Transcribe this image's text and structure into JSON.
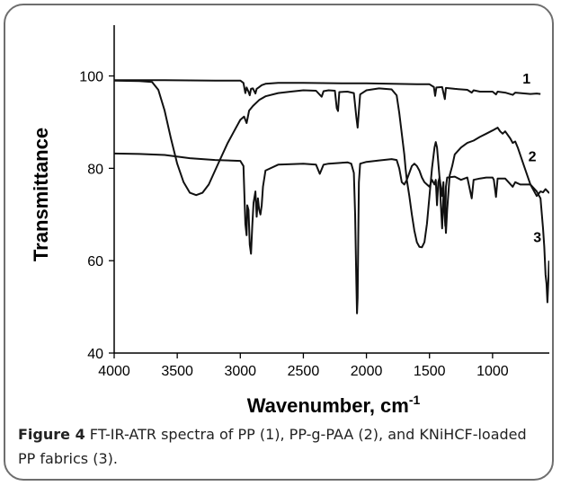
{
  "chart_data": {
    "type": "line",
    "xlabel": "Wavenumber, cm",
    "xlabel_sup": "-1",
    "ylabel": "Transmittance",
    "xlim": [
      4000,
      550
    ],
    "ylim": [
      40,
      111
    ],
    "x_ticks": [
      4000,
      3500,
      3000,
      2500,
      2000,
      1500,
      1000
    ],
    "y_ticks": [
      40,
      60,
      80,
      100
    ],
    "grid": false,
    "series": [
      {
        "name": "1",
        "label_at": [
          730,
          98.4
        ],
        "points": [
          [
            4000,
            99.1
          ],
          [
            3600,
            99.1
          ],
          [
            3200,
            99.0
          ],
          [
            3000,
            99.0
          ],
          [
            2975,
            98.5
          ],
          [
            2960,
            96.3
          ],
          [
            2950,
            97.5
          ],
          [
            2935,
            96.6
          ],
          [
            2925,
            95.8
          ],
          [
            2915,
            97.2
          ],
          [
            2900,
            97.3
          ],
          [
            2880,
            96.2
          ],
          [
            2870,
            97.2
          ],
          [
            2850,
            97.6
          ],
          [
            2830,
            98.0
          ],
          [
            2800,
            98.3
          ],
          [
            2700,
            98.5
          ],
          [
            2500,
            98.5
          ],
          [
            2200,
            98.4
          ],
          [
            2000,
            98.4
          ],
          [
            1800,
            98.3
          ],
          [
            1600,
            98.2
          ],
          [
            1500,
            98.2
          ],
          [
            1465,
            97.6
          ],
          [
            1455,
            95.7
          ],
          [
            1445,
            97.5
          ],
          [
            1400,
            97.6
          ],
          [
            1378,
            95.0
          ],
          [
            1370,
            97.4
          ],
          [
            1300,
            97.2
          ],
          [
            1200,
            97.0
          ],
          [
            1165,
            96.4
          ],
          [
            1150,
            96.9
          ],
          [
            1100,
            96.6
          ],
          [
            1000,
            96.6
          ],
          [
            973,
            96.0
          ],
          [
            960,
            96.6
          ],
          [
            900,
            96.4
          ],
          [
            840,
            95.9
          ],
          [
            820,
            96.4
          ],
          [
            700,
            96.1
          ],
          [
            650,
            96.2
          ],
          [
            620,
            96.1
          ]
        ]
      },
      {
        "name": "2",
        "label_at": [
          685,
          81.5
        ],
        "points": [
          [
            4000,
            99.0
          ],
          [
            3800,
            98.9
          ],
          [
            3700,
            98.7
          ],
          [
            3650,
            97.0
          ],
          [
            3600,
            92.5
          ],
          [
            3550,
            86.5
          ],
          [
            3500,
            81.0
          ],
          [
            3450,
            77.0
          ],
          [
            3400,
            74.7
          ],
          [
            3350,
            74.2
          ],
          [
            3300,
            74.7
          ],
          [
            3250,
            76.5
          ],
          [
            3200,
            79.5
          ],
          [
            3150,
            82.5
          ],
          [
            3100,
            85.5
          ],
          [
            3050,
            88.0
          ],
          [
            3000,
            90.5
          ],
          [
            2970,
            91.2
          ],
          [
            2950,
            89.8
          ],
          [
            2930,
            92.5
          ],
          [
            2900,
            93.5
          ],
          [
            2850,
            94.8
          ],
          [
            2800,
            95.6
          ],
          [
            2700,
            96.3
          ],
          [
            2600,
            96.6
          ],
          [
            2500,
            96.9
          ],
          [
            2400,
            96.8
          ],
          [
            2355,
            95.5
          ],
          [
            2340,
            96.7
          ],
          [
            2300,
            96.9
          ],
          [
            2250,
            96.8
          ],
          [
            2235,
            93.0
          ],
          [
            2225,
            92.4
          ],
          [
            2215,
            96.5
          ],
          [
            2150,
            96.6
          ],
          [
            2100,
            96.3
          ],
          [
            2080,
            91.0
          ],
          [
            2070,
            88.8
          ],
          [
            2060,
            92.5
          ],
          [
            2050,
            96.0
          ],
          [
            2000,
            96.9
          ],
          [
            1900,
            97.3
          ],
          [
            1800,
            97.1
          ],
          [
            1760,
            95.8
          ],
          [
            1740,
            92.0
          ],
          [
            1720,
            87.5
          ],
          [
            1700,
            83.0
          ],
          [
            1690,
            80.0
          ],
          [
            1680,
            77.5
          ],
          [
            1660,
            74.0
          ],
          [
            1640,
            70.0
          ],
          [
            1620,
            66.5
          ],
          [
            1600,
            64.0
          ],
          [
            1580,
            63.0
          ],
          [
            1560,
            62.9
          ],
          [
            1540,
            64.0
          ],
          [
            1520,
            68.0
          ],
          [
            1500,
            74.0
          ],
          [
            1480,
            80.0
          ],
          [
            1460,
            84.5
          ],
          [
            1450,
            85.7
          ],
          [
            1440,
            84.5
          ],
          [
            1420,
            78.0
          ],
          [
            1410,
            72.0
          ],
          [
            1400,
            67.0
          ],
          [
            1390,
            74.0
          ],
          [
            1380,
            72.5
          ],
          [
            1370,
            66.0
          ],
          [
            1360,
            71.0
          ],
          [
            1340,
            78.5
          ],
          [
            1320,
            80.5
          ],
          [
            1300,
            83.0
          ],
          [
            1250,
            84.5
          ],
          [
            1200,
            85.5
          ],
          [
            1150,
            86.0
          ],
          [
            1100,
            86.8
          ],
          [
            1050,
            87.5
          ],
          [
            1000,
            88.2
          ],
          [
            960,
            88.8
          ],
          [
            940,
            88.0
          ],
          [
            920,
            87.5
          ],
          [
            900,
            88.0
          ],
          [
            860,
            86.5
          ],
          [
            840,
            85.5
          ],
          [
            820,
            85.8
          ],
          [
            800,
            84.5
          ],
          [
            750,
            80.5
          ],
          [
            700,
            76.5
          ],
          [
            650,
            74.0
          ],
          [
            620,
            75.0
          ],
          [
            600,
            74.8
          ],
          [
            580,
            75.5
          ],
          [
            560,
            74.9
          ],
          [
            550,
            74.6
          ]
        ]
      },
      {
        "name": "3",
        "label_at": [
          645,
          64.0
        ],
        "points": [
          [
            4000,
            83.2
          ],
          [
            3800,
            83.1
          ],
          [
            3600,
            82.9
          ],
          [
            3400,
            82.2
          ],
          [
            3200,
            81.8
          ],
          [
            3000,
            81.6
          ],
          [
            2975,
            80.5
          ],
          [
            2960,
            68.0
          ],
          [
            2950,
            65.5
          ],
          [
            2945,
            72.0
          ],
          [
            2935,
            71.0
          ],
          [
            2925,
            63.5
          ],
          [
            2915,
            61.5
          ],
          [
            2905,
            67.5
          ],
          [
            2895,
            72.5
          ],
          [
            2880,
            75.0
          ],
          [
            2870,
            69.5
          ],
          [
            2860,
            73.5
          ],
          [
            2850,
            71.0
          ],
          [
            2840,
            70.0
          ],
          [
            2830,
            72.0
          ],
          [
            2820,
            76.0
          ],
          [
            2800,
            79.5
          ],
          [
            2700,
            80.8
          ],
          [
            2500,
            81.0
          ],
          [
            2400,
            80.8
          ],
          [
            2370,
            78.8
          ],
          [
            2355,
            79.8
          ],
          [
            2340,
            80.8
          ],
          [
            2300,
            81.0
          ],
          [
            2200,
            81.2
          ],
          [
            2150,
            81.3
          ],
          [
            2120,
            81.0
          ],
          [
            2100,
            79.0
          ],
          [
            2090,
            70.0
          ],
          [
            2080,
            55.0
          ],
          [
            2075,
            48.6
          ],
          [
            2070,
            52.0
          ],
          [
            2065,
            65.0
          ],
          [
            2060,
            77.0
          ],
          [
            2050,
            81.0
          ],
          [
            2000,
            81.4
          ],
          [
            1900,
            81.7
          ],
          [
            1800,
            82.0
          ],
          [
            1760,
            81.8
          ],
          [
            1740,
            80.0
          ],
          [
            1720,
            77.0
          ],
          [
            1700,
            76.5
          ],
          [
            1680,
            77.5
          ],
          [
            1660,
            79.0
          ],
          [
            1640,
            80.5
          ],
          [
            1620,
            81.0
          ],
          [
            1600,
            80.5
          ],
          [
            1580,
            79.5
          ],
          [
            1560,
            78.0
          ],
          [
            1540,
            77.0
          ],
          [
            1520,
            76.5
          ],
          [
            1500,
            76.0
          ],
          [
            1480,
            77.5
          ],
          [
            1460,
            76.5
          ],
          [
            1450,
            77.5
          ],
          [
            1440,
            72.0
          ],
          [
            1430,
            77.0
          ],
          [
            1420,
            78.0
          ],
          [
            1400,
            74.0
          ],
          [
            1390,
            77.0
          ],
          [
            1380,
            70.0
          ],
          [
            1375,
            67.5
          ],
          [
            1370,
            76.0
          ],
          [
            1360,
            78.0
          ],
          [
            1300,
            78.2
          ],
          [
            1250,
            77.5
          ],
          [
            1200,
            78.0
          ],
          [
            1165,
            73.5
          ],
          [
            1150,
            77.5
          ],
          [
            1100,
            77.8
          ],
          [
            1050,
            78.0
          ],
          [
            1000,
            78.0
          ],
          [
            990,
            77.5
          ],
          [
            973,
            73.8
          ],
          [
            960,
            77.8
          ],
          [
            900,
            77.8
          ],
          [
            840,
            76.0
          ],
          [
            820,
            77.0
          ],
          [
            780,
            76.5
          ],
          [
            700,
            76.5
          ],
          [
            650,
            75.0
          ],
          [
            620,
            73.5
          ],
          [
            600,
            67.0
          ],
          [
            590,
            63.0
          ],
          [
            580,
            57.0
          ],
          [
            572,
            55.0
          ],
          [
            565,
            51.0
          ],
          [
            558,
            55.5
          ],
          [
            552,
            60.0
          ]
        ]
      }
    ]
  },
  "caption": {
    "label": "Figure 4",
    "text": " FT-IR-ATR spectra of PP (1), PP-g-PAA (2), and KNiHCF-loaded PP fabrics (3)."
  }
}
